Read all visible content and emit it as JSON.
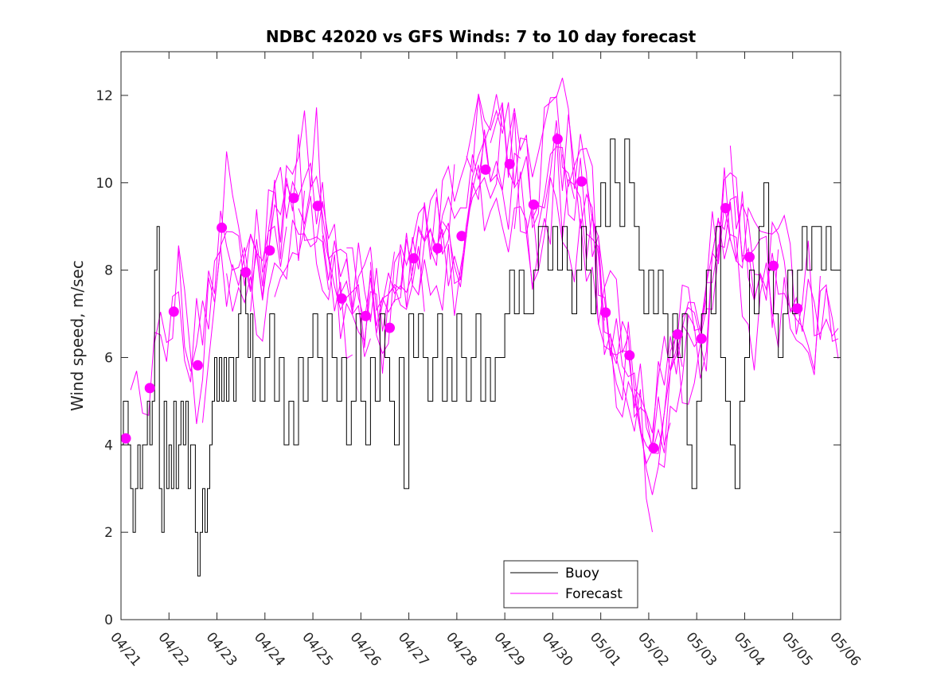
{
  "chart_data": {
    "type": "line",
    "title": "NDBC 42020 vs GFS Winds: 7 to 10 day forecast",
    "xlabel": "",
    "ylabel": "Wind speed, m/sec",
    "ylim": [
      0,
      13
    ],
    "yticks": [
      0,
      2,
      4,
      6,
      8,
      10,
      12
    ],
    "xlim_days": [
      0,
      15
    ],
    "xtick_labels": [
      "04/21",
      "04/22",
      "04/23",
      "04/24",
      "04/25",
      "04/26",
      "04/27",
      "04/28",
      "04/29",
      "04/30",
      "05/01",
      "05/02",
      "05/03",
      "05/04",
      "05/05",
      "05/06"
    ],
    "legend": {
      "placement": "bottom-center",
      "entries": [
        {
          "label": "Buoy",
          "color": "#000000"
        },
        {
          "label": "Forecast",
          "color": "#ff00ff"
        }
      ]
    },
    "colors": {
      "buoy": "#000000",
      "forecast": "#ff00ff",
      "marker": "#ff00ff"
    },
    "series": [
      {
        "name": "Buoy",
        "color": "#000000",
        "x": [
          0,
          0.05,
          0.1,
          0.15,
          0.2,
          0.25,
          0.3,
          0.35,
          0.4,
          0.45,
          0.5,
          0.55,
          0.6,
          0.65,
          0.7,
          0.75,
          0.8,
          0.85,
          0.9,
          0.95,
          1.0,
          1.05,
          1.1,
          1.15,
          1.2,
          1.25,
          1.3,
          1.35,
          1.4,
          1.45,
          1.5,
          1.55,
          1.6,
          1.65,
          1.7,
          1.75,
          1.8,
          1.85,
          1.9,
          1.95,
          2.0,
          2.05,
          2.1,
          2.15,
          2.2,
          2.25,
          2.3,
          2.35,
          2.4,
          2.45,
          2.5,
          2.55,
          2.6,
          2.65,
          2.7,
          2.75,
          2.8,
          2.85,
          2.9,
          2.95,
          3.0,
          3.1,
          3.2,
          3.3,
          3.4,
          3.5,
          3.6,
          3.7,
          3.8,
          3.9,
          4.0,
          4.1,
          4.2,
          4.3,
          4.4,
          4.5,
          4.6,
          4.7,
          4.8,
          4.9,
          5.0,
          5.1,
          5.2,
          5.3,
          5.4,
          5.5,
          5.6,
          5.7,
          5.8,
          5.9,
          6.0,
          6.1,
          6.2,
          6.3,
          6.4,
          6.5,
          6.6,
          6.7,
          6.8,
          6.9,
          7.0,
          7.1,
          7.2,
          7.3,
          7.4,
          7.5,
          7.6,
          7.7,
          7.8,
          7.9,
          8.0,
          8.1,
          8.2,
          8.3,
          8.4,
          8.5,
          8.6,
          8.7,
          8.8,
          8.9,
          9.0,
          9.1,
          9.2,
          9.3,
          9.4,
          9.5,
          9.6,
          9.7,
          9.8,
          9.9,
          10.0,
          10.1,
          10.2,
          10.3,
          10.4,
          10.5,
          10.6,
          10.7,
          10.8,
          10.9,
          11.0,
          11.1,
          11.2,
          11.3,
          11.4,
          11.5,
          11.6,
          11.7,
          11.8,
          11.9,
          12.0,
          12.1,
          12.2,
          12.3,
          12.4,
          12.5,
          12.6,
          12.7,
          12.8,
          12.9,
          13.0,
          13.1,
          13.2,
          13.3,
          13.4,
          13.5,
          13.6,
          13.7,
          13.8,
          13.9,
          14.0,
          14.1,
          14.2,
          14.3,
          14.4,
          14.5,
          14.6,
          14.7,
          14.8,
          14.9,
          15.0
        ],
        "values": [
          4,
          5,
          5,
          4,
          3,
          2,
          3,
          4,
          3,
          4,
          4,
          5,
          4,
          5,
          8,
          9,
          3,
          2,
          5,
          3,
          4,
          3,
          5,
          3,
          4,
          5,
          4,
          5,
          3,
          4,
          4,
          2,
          1,
          2,
          3,
          2,
          3,
          4,
          5,
          6,
          5,
          6,
          5,
          6,
          5,
          6,
          6,
          5,
          6,
          7,
          8,
          8,
          7,
          6,
          7,
          5,
          6,
          6,
          5,
          5,
          6,
          7,
          5,
          6,
          4,
          5,
          4,
          6,
          5,
          6,
          7,
          6,
          5,
          7,
          6,
          5,
          6,
          4,
          5,
          7,
          5,
          4,
          6,
          5,
          7,
          6,
          5,
          4,
          6,
          3,
          7,
          6,
          7,
          6,
          5,
          6,
          7,
          5,
          6,
          5,
          7,
          6,
          5,
          6,
          7,
          5,
          6,
          5,
          6,
          6,
          7,
          8,
          7,
          8,
          7,
          7,
          8,
          9,
          9,
          8,
          9,
          8,
          9,
          8,
          7,
          8,
          9,
          8,
          7,
          9,
          10,
          9,
          11,
          10,
          9,
          11,
          10,
          9,
          8,
          7,
          8,
          7,
          8,
          7,
          6,
          7,
          6,
          7,
          4,
          3,
          5,
          7,
          8,
          7,
          9,
          6,
          5,
          4,
          3,
          5,
          6,
          8,
          7,
          9,
          10,
          8,
          7,
          6,
          7,
          8,
          7,
          8,
          9,
          8,
          9,
          9,
          8,
          9,
          8,
          8,
          9
        ],
        "series_style": "step"
      }
    ],
    "forecast_runs_count": 26,
    "forecast_markers": [
      {
        "x": 0.1,
        "y": 4.15
      },
      {
        "x": 0.6,
        "y": 5.3
      },
      {
        "x": 1.1,
        "y": 7.05
      },
      {
        "x": 1.6,
        "y": 5.82
      },
      {
        "x": 2.1,
        "y": 8.97
      },
      {
        "x": 2.6,
        "y": 7.95
      },
      {
        "x": 3.1,
        "y": 8.45
      },
      {
        "x": 3.6,
        "y": 9.65
      },
      {
        "x": 4.1,
        "y": 9.47
      },
      {
        "x": 4.6,
        "y": 7.35
      },
      {
        "x": 5.1,
        "y": 6.95
      },
      {
        "x": 5.6,
        "y": 6.68
      },
      {
        "x": 6.1,
        "y": 8.27
      },
      {
        "x": 6.6,
        "y": 8.5
      },
      {
        "x": 7.1,
        "y": 8.78
      },
      {
        "x": 7.6,
        "y": 10.3
      },
      {
        "x": 8.1,
        "y": 10.43
      },
      {
        "x": 8.6,
        "y": 9.5
      },
      {
        "x": 9.1,
        "y": 11.0
      },
      {
        "x": 9.6,
        "y": 10.03
      },
      {
        "x": 10.1,
        "y": 7.03
      },
      {
        "x": 10.6,
        "y": 6.05
      },
      {
        "x": 11.1,
        "y": 3.93
      },
      {
        "x": 11.6,
        "y": 6.53
      },
      {
        "x": 12.1,
        "y": 6.43
      },
      {
        "x": 12.6,
        "y": 9.42
      },
      {
        "x": 13.1,
        "y": 8.3
      },
      {
        "x": 13.6,
        "y": 8.1
      },
      {
        "x": 14.1,
        "y": 7.12
      }
    ]
  }
}
